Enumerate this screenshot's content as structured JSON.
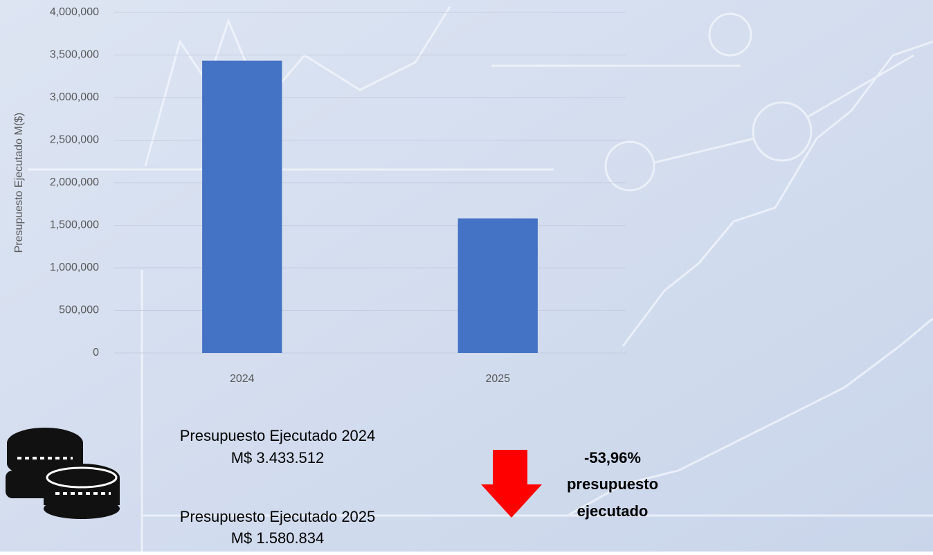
{
  "chart_data": {
    "type": "bar",
    "y_label": "Presupuesto Ejecutado M($)",
    "categories": [
      "2024",
      "2025"
    ],
    "values": [
      3433512,
      1580834
    ],
    "color": "#4472c4",
    "ylim": [
      0,
      4000000
    ],
    "yticks": [
      0,
      {
        "value": 500000,
        "label": "500,000"
      },
      {
        "value": 1000000,
        "label": "1,000,000"
      },
      {
        "value": 1500000,
        "label": "1,500,000"
      },
      {
        "value": 2000000,
        "label": "2,000,000"
      },
      {
        "value": 2500000,
        "label": "2,500,000"
      },
      {
        "value": 3000000,
        "label": "3,000,000"
      },
      {
        "value": 3500000,
        "label": "3,500,000"
      },
      {
        "value": 4000000,
        "label": "4,000,000"
      }
    ],
    "grid": true,
    "annotations": [
      "Presupuesto Ejecutado 2024",
      "M$ 3.433.512",
      "Presupuesto Ejecutado 2025",
      "M$ 1.580.834",
      "-53,96%",
      "presupuesto",
      "ejecutado"
    ]
  }
}
